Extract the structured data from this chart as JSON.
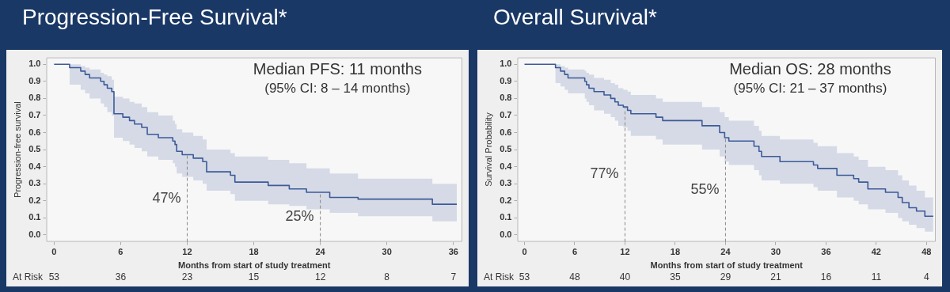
{
  "chart_data": [
    {
      "type": "step",
      "title": "Progression-Free Survival*",
      "xlabel": "Months from start of study treatment",
      "ylabel": "Progression-free survival",
      "xlim": [
        -0.7,
        36.8
      ],
      "xticks": [
        0,
        6,
        12,
        18,
        24,
        30,
        36
      ],
      "ylim": [
        -0.04,
        1.04
      ],
      "yticks": [
        {
          "value": 0,
          "label": "0.0"
        },
        {
          "value": 0.1,
          "label": "0.1"
        },
        {
          "value": 0.2,
          "label": "0.2"
        },
        {
          "value": 0.3,
          "label": "0.3"
        },
        {
          "value": 0.4,
          "label": "0.4"
        },
        {
          "value": 0.5,
          "label": "0.5"
        },
        {
          "value": 0.6,
          "label": "0.6"
        },
        {
          "value": 0.7,
          "label": "0.7"
        },
        {
          "value": 0.8,
          "label": "0.8"
        },
        {
          "value": 0.9,
          "label": "0.9"
        },
        {
          "value": 1,
          "label": "1.0"
        }
      ],
      "grid": false,
      "legend": false,
      "marker": "none",
      "line_style": "solid",
      "series": [
        {
          "color": "#3d5a99",
          "x": [
            0,
            1.4,
            2.4,
            2.8,
            3.2,
            4.2,
            4.5,
            4.8,
            5.2,
            5.4,
            6.2,
            6.8,
            7.25,
            7.9,
            8.4,
            9.4,
            10.7,
            10.9,
            11.05,
            11.55,
            12.55,
            13.4,
            13.75,
            15.9,
            16.3,
            19.3,
            21.2,
            22.75,
            24.85,
            27.4,
            34.1,
            36.3
          ],
          "values": [
            1.0,
            0.98,
            0.96,
            0.94,
            0.92,
            0.9,
            0.88,
            0.86,
            0.84,
            0.71,
            0.69,
            0.67,
            0.65,
            0.63,
            0.59,
            0.57,
            0.55,
            0.53,
            0.49,
            0.47,
            0.45,
            0.43,
            0.37,
            0.35,
            0.31,
            0.29,
            0.27,
            0.25,
            0.22,
            0.21,
            0.18,
            0.18
          ],
          "lower": [
            1.0,
            0.88,
            0.85,
            0.83,
            0.8,
            0.77,
            0.75,
            0.72,
            0.7,
            0.57,
            0.55,
            0.53,
            0.51,
            0.49,
            0.46,
            0.44,
            0.42,
            0.4,
            0.36,
            0.34,
            0.32,
            0.3,
            0.26,
            0.24,
            0.2,
            0.18,
            0.17,
            0.15,
            0.13,
            0.11,
            0.08,
            0.08
          ],
          "upper": [
            1.0,
            1.0,
            0.99,
            0.98,
            0.97,
            0.95,
            0.94,
            0.93,
            0.91,
            0.81,
            0.8,
            0.78,
            0.77,
            0.75,
            0.72,
            0.7,
            0.67,
            0.65,
            0.62,
            0.6,
            0.58,
            0.56,
            0.5,
            0.48,
            0.46,
            0.44,
            0.42,
            0.39,
            0.36,
            0.33,
            0.3,
            0.3
          ]
        }
      ],
      "ref_lines": [
        {
          "axis": "x",
          "value": 12,
          "line_style": "dashed"
        },
        {
          "axis": "x",
          "value": 24,
          "line_style": "dashed"
        }
      ],
      "annotations": [
        "Median PFS: 11 months",
        "(95% CI: 8 – 14 months)",
        "47%",
        "25%",
        "At Risk",
        "53",
        "36",
        "23",
        "15",
        "12",
        "8",
        "7"
      ]
    },
    {
      "type": "step",
      "title": "Overall Survival*",
      "xlabel": "Months from start of study treatment",
      "ylabel": "Survival Probability",
      "xlim": [
        -0.85,
        49.1
      ],
      "xticks": [
        0,
        6,
        12,
        18,
        24,
        30,
        36,
        42,
        48
      ],
      "ylim": [
        -0.04,
        1.04
      ],
      "yticks": [
        {
          "value": 0,
          "label": "0.0"
        },
        {
          "value": 0.1,
          "label": "0.1"
        },
        {
          "value": 0.2,
          "label": "0.2"
        },
        {
          "value": 0.3,
          "label": "0.3"
        },
        {
          "value": 0.4,
          "label": "0.4"
        },
        {
          "value": 0.5,
          "label": "0.5"
        },
        {
          "value": 0.6,
          "label": "0.6"
        },
        {
          "value": 0.7,
          "label": "0.7"
        },
        {
          "value": 0.8,
          "label": "0.8"
        },
        {
          "value": 0.9,
          "label": "0.9"
        },
        {
          "value": 1,
          "label": "1.0"
        }
      ],
      "grid": false,
      "legend": false,
      "marker": "none",
      "line_style": "solid",
      "series": [
        {
          "color": "#3d5a99",
          "x": [
            0,
            3.7,
            4.3,
            4.8,
            5.2,
            7.2,
            7.4,
            7.7,
            8.3,
            9.5,
            10.3,
            10.8,
            11.2,
            11.8,
            12.3,
            12.7,
            15.7,
            16.5,
            21.2,
            23.3,
            23.9,
            24.4,
            27.4,
            28.0,
            28.3,
            30.5,
            34.5,
            35.0,
            37.3,
            39.3,
            39.9,
            41.0,
            43.1,
            44.6,
            45.1,
            45.9,
            46.8,
            47.8,
            48.8
          ],
          "values": [
            1.0,
            0.98,
            0.96,
            0.94,
            0.92,
            0.9,
            0.88,
            0.86,
            0.84,
            0.82,
            0.8,
            0.78,
            0.76,
            0.75,
            0.73,
            0.71,
            0.69,
            0.67,
            0.64,
            0.6,
            0.57,
            0.55,
            0.52,
            0.49,
            0.46,
            0.43,
            0.41,
            0.39,
            0.35,
            0.33,
            0.31,
            0.27,
            0.25,
            0.22,
            0.19,
            0.16,
            0.14,
            0.11,
            0.11
          ],
          "lower": [
            1.0,
            0.89,
            0.87,
            0.85,
            0.83,
            0.8,
            0.78,
            0.76,
            0.73,
            0.71,
            0.69,
            0.67,
            0.64,
            0.63,
            0.61,
            0.58,
            0.56,
            0.53,
            0.5,
            0.46,
            0.43,
            0.41,
            0.38,
            0.35,
            0.32,
            0.3,
            0.28,
            0.26,
            0.22,
            0.2,
            0.18,
            0.15,
            0.13,
            0.1,
            0.08,
            0.06,
            0.04,
            0.02,
            0.02
          ],
          "upper": [
            1.0,
            1.0,
            0.99,
            0.98,
            0.97,
            0.96,
            0.95,
            0.94,
            0.92,
            0.91,
            0.89,
            0.88,
            0.86,
            0.85,
            0.84,
            0.82,
            0.8,
            0.78,
            0.75,
            0.72,
            0.69,
            0.67,
            0.64,
            0.61,
            0.58,
            0.56,
            0.54,
            0.52,
            0.48,
            0.46,
            0.44,
            0.4,
            0.38,
            0.35,
            0.32,
            0.29,
            0.26,
            0.22,
            0.22
          ]
        }
      ],
      "ref_lines": [
        {
          "axis": "x",
          "value": 12,
          "line_style": "dashed"
        },
        {
          "axis": "x",
          "value": 24,
          "line_style": "dashed"
        }
      ],
      "annotations": [
        "Median OS: 28 months",
        "(95% CI: 21 – 37 months)",
        "77%",
        "55%",
        "At Risk",
        "53",
        "48",
        "40",
        "35",
        "29",
        "21",
        "16",
        "11",
        "4"
      ]
    }
  ]
}
